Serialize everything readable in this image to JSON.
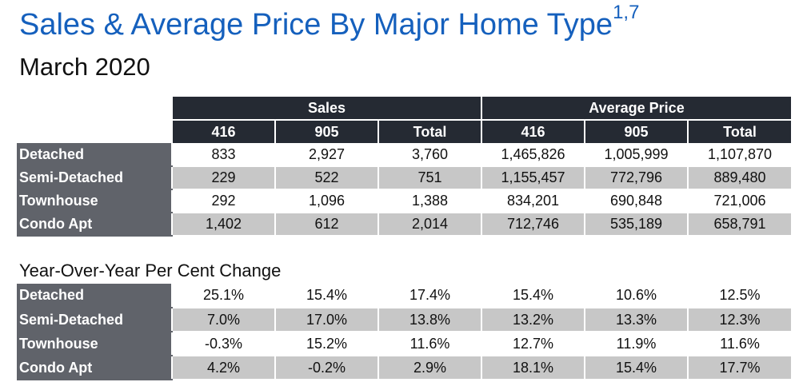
{
  "title": "Sales & Average Price By Major Home Type",
  "title_superscript": "1,7",
  "subtitle": "March 2020",
  "table1": {
    "group_headers": [
      "Sales",
      "Average Price"
    ],
    "col_headers": [
      "416",
      "905",
      "Total",
      "416",
      "905",
      "Total"
    ],
    "rows": [
      {
        "label": "Detached",
        "values": [
          "833",
          "2,927",
          "3,760",
          "1,465,826",
          "1,005,999",
          "1,107,870"
        ]
      },
      {
        "label": "Semi-Detached",
        "values": [
          "229",
          "522",
          "751",
          "1,155,457",
          "772,796",
          "889,480"
        ]
      },
      {
        "label": "Townhouse",
        "values": [
          "292",
          "1,096",
          "1,388",
          "834,201",
          "690,848",
          "721,006"
        ]
      },
      {
        "label": "Condo Apt",
        "values": [
          "1,402",
          "612",
          "2,014",
          "712,746",
          "535,189",
          "658,791"
        ]
      }
    ]
  },
  "section2_title": "Year-Over-Year Per Cent Change",
  "table2": {
    "rows": [
      {
        "label": "Detached",
        "values": [
          "25.1%",
          "15.4%",
          "17.4%",
          "15.4%",
          "10.6%",
          "12.5%"
        ]
      },
      {
        "label": "Semi-Detached",
        "values": [
          "7.0%",
          "17.0%",
          "13.8%",
          "13.2%",
          "13.3%",
          "12.3%"
        ]
      },
      {
        "label": "Townhouse",
        "values": [
          "-0.3%",
          "15.2%",
          "11.6%",
          "12.7%",
          "11.9%",
          "11.6%"
        ]
      },
      {
        "label": "Condo Apt",
        "values": [
          "4.2%",
          "-0.2%",
          "2.9%",
          "18.1%",
          "15.4%",
          "17.7%"
        ]
      }
    ]
  },
  "colors": {
    "title_blue": "#1560bd",
    "header_dark": "#252a33",
    "row_label_gray": "#60636a",
    "alt_row_gray": "#c7c7c7"
  }
}
